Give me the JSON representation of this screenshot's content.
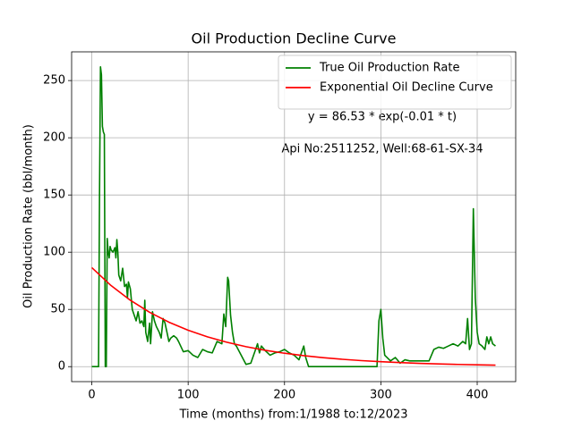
{
  "chart_data": {
    "type": "line",
    "title": "Oil Production Decline Curve",
    "xlabel": "Time (months) from:1/1988 to:12/2023",
    "ylabel": "Oil Production Rate (bbl/month)",
    "annotations": [
      "y = 86.53 * exp(-0.01 * t)",
      "Api No:2511252, Well:68-61-SX-34"
    ],
    "xlim": [
      -20.95,
      439.95
    ],
    "ylim": [
      -13.1,
      275.1
    ],
    "xticks": [
      0,
      100,
      200,
      300,
      400
    ],
    "yticks": [
      0,
      50,
      100,
      150,
      200,
      250
    ],
    "grid": true,
    "legend": "upper right",
    "series": [
      {
        "name": "True Oil Production Rate",
        "color": "#008000",
        "x": [
          0,
          7,
          8,
          9,
          10,
          11,
          12,
          13,
          14,
          15,
          16,
          17,
          18,
          19,
          20,
          22,
          24,
          25,
          26,
          27,
          28,
          30,
          32,
          34,
          36,
          37,
          38,
          40,
          42,
          44,
          46,
          48,
          50,
          52,
          54,
          55,
          56,
          58,
          60,
          61,
          63,
          65,
          67,
          70,
          72,
          74,
          76,
          78,
          80,
          82,
          85,
          88,
          90,
          95,
          100,
          105,
          110,
          115,
          120,
          125,
          130,
          135,
          137,
          139,
          141,
          142,
          144,
          146,
          148,
          150,
          155,
          160,
          165,
          170,
          172,
          174,
          176,
          180,
          185,
          190,
          195,
          200,
          205,
          210,
          215,
          220,
          222,
          225,
          250,
          280,
          296,
          298,
          300,
          302,
          304,
          310,
          315,
          320,
          325,
          330,
          340,
          350,
          355,
          360,
          365,
          370,
          375,
          380,
          385,
          388,
          390,
          392,
          394,
          396,
          398,
          400,
          402,
          405,
          408,
          410,
          412,
          414,
          416,
          419
        ],
        "values": [
          0,
          0,
          150,
          262,
          255,
          210,
          205,
          203,
          0,
          0,
          112,
          100,
          95,
          105,
          102,
          100,
          104,
          95,
          111,
          100,
          80,
          75,
          86,
          70,
          72,
          60,
          74,
          68,
          50,
          45,
          40,
          48,
          38,
          40,
          35,
          58,
          30,
          22,
          38,
          20,
          48,
          40,
          35,
          30,
          25,
          42,
          38,
          30,
          22,
          25,
          27,
          25,
          22,
          13,
          14,
          10,
          8,
          15,
          13,
          12,
          22,
          20,
          46,
          35,
          78,
          75,
          45,
          30,
          20,
          18,
          10,
          2,
          3,
          15,
          20,
          12,
          18,
          14,
          10,
          12,
          13,
          15,
          12,
          10,
          6,
          18,
          8,
          0,
          0,
          0,
          0,
          40,
          50,
          25,
          10,
          5,
          8,
          3,
          6,
          5,
          5,
          5,
          15,
          17,
          16,
          18,
          20,
          18,
          22,
          20,
          42,
          15,
          20,
          138,
          60,
          30,
          20,
          18,
          15,
          26,
          20,
          26,
          20,
          18
        ]
      },
      {
        "name": "Exponential Oil Decline Curve",
        "color": "#ff0000",
        "x": [
          0,
          20,
          40,
          60,
          80,
          100,
          120,
          140,
          160,
          180,
          200,
          220,
          240,
          260,
          280,
          300,
          320,
          340,
          360,
          380,
          400,
          419
        ],
        "values": [
          86.53,
          70.84,
          58.0,
          47.49,
          38.88,
          31.83,
          26.06,
          21.34,
          17.47,
          14.3,
          11.71,
          9.59,
          7.85,
          6.43,
          5.26,
          4.31,
          3.53,
          2.89,
          2.36,
          1.94,
          1.58,
          1.31
        ]
      }
    ]
  }
}
